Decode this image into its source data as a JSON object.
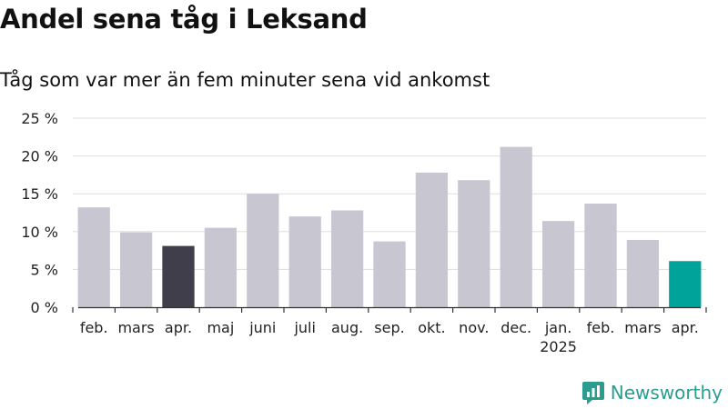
{
  "header": {
    "title": "Andel sena tåg i Leksand",
    "subtitle": "Tåg som var mer än fem minuter sena vid ankomst"
  },
  "brand": {
    "name": "Newsworthy",
    "icon": "newsworthy-logo-icon",
    "color": "#2a9d8f"
  },
  "colors": {
    "bar": "#c8c6d1",
    "highlight_dark": "#3f3e4a",
    "highlight_teal": "#00a39a",
    "grid": "#dddddd"
  },
  "chart_data": {
    "type": "bar",
    "categories": [
      "feb.",
      "mars",
      "apr.",
      "maj",
      "juni",
      "juli",
      "aug.",
      "sep.",
      "okt.",
      "nov.",
      "dec.",
      "jan.",
      "feb.",
      "mars",
      "apr."
    ],
    "year_labels": [
      {
        "index": 11,
        "label": "2025"
      }
    ],
    "values": [
      13.2,
      9.9,
      8.1,
      10.5,
      15.0,
      12.0,
      12.8,
      8.7,
      17.8,
      16.8,
      21.2,
      11.4,
      13.7,
      8.9,
      6.1
    ],
    "highlight": {
      "2": "highlight_dark",
      "14": "highlight_teal"
    },
    "ylim": [
      0,
      25
    ],
    "yticks": [
      0,
      5,
      10,
      15,
      20,
      25
    ],
    "ytick_format": "{v} %",
    "grid": true,
    "legend": "none"
  }
}
